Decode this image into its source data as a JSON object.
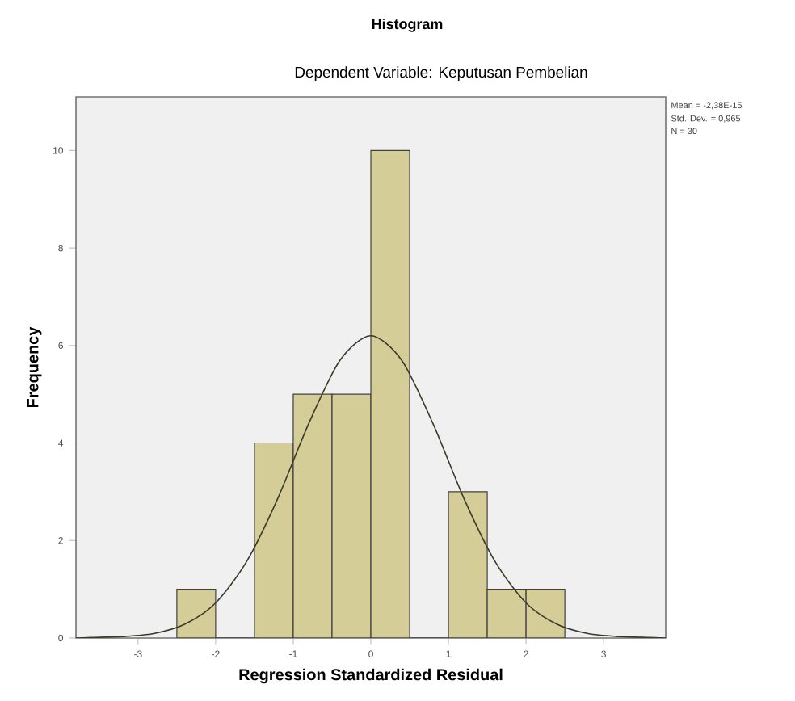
{
  "chart_data": {
    "type": "histogram",
    "title": "Histogram",
    "subtitle": "Dependent Variable: Keputusan Pembelian",
    "xlabel": "Regression Standardized Residual",
    "ylabel": "Frequency",
    "bins": [
      -2.5,
      -2,
      -1.5,
      -1,
      -0.5,
      0,
      0.5,
      1,
      1.5,
      2,
      2.5
    ],
    "values": [
      1,
      0,
      4,
      5,
      5,
      10,
      0,
      3,
      1,
      1
    ],
    "color": "#d4cd97",
    "series": [
      {
        "type": "line",
        "color": "#3a3a2a",
        "x": [
          -3.8,
          -3.6,
          -3.2,
          -2.8,
          -2.4,
          -2.0,
          -1.6,
          -1.2,
          -0.8,
          -0.4,
          0,
          0.4,
          0.8,
          1.2,
          1.6,
          2.0,
          2.4,
          2.8,
          3.2,
          3.6,
          3.8
        ],
        "values": [
          0,
          0.01,
          0.03,
          0.09,
          0.28,
          0.72,
          1.57,
          2.86,
          4.4,
          5.69,
          6.2,
          5.69,
          4.4,
          2.86,
          1.57,
          0.72,
          0.28,
          0.09,
          0.03,
          0.01,
          0
        ]
      }
    ],
    "xlim": [
      -3.8,
      3.8
    ],
    "ylim": [
      0,
      11.1
    ],
    "xticks": [
      -3,
      -2,
      -1,
      0,
      1,
      2,
      3
    ],
    "yticks": [
      0,
      2,
      4,
      6,
      8,
      10
    ],
    "annotations": [
      "Mean = -2,38E-15",
      "Std. Dev. = 0,965",
      "N = 30"
    ]
  }
}
